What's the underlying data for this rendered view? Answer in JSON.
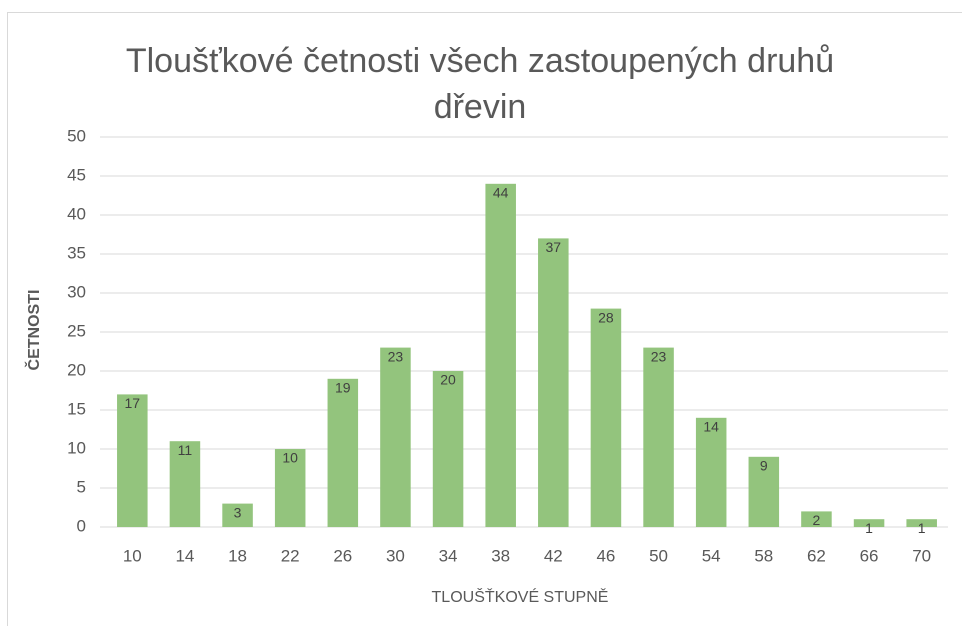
{
  "chart_data": {
    "type": "bar",
    "title": "Tloušťkové četnosti všech zastoupených druhů dřevin",
    "x_label": "TLOUŠŤKOVÉ STUPNĚ",
    "y_label": "ČETNOSTI",
    "categories": [
      "10",
      "14",
      "18",
      "22",
      "26",
      "30",
      "34",
      "38",
      "42",
      "46",
      "50",
      "54",
      "58",
      "62",
      "66",
      "70"
    ],
    "values": [
      17,
      11,
      3,
      10,
      19,
      23,
      20,
      44,
      37,
      28,
      23,
      14,
      9,
      2,
      1,
      1
    ],
    "color": "#93c47d",
    "ylim": [
      0,
      50
    ],
    "yticks": [
      0,
      5,
      10,
      15,
      20,
      25,
      30,
      35,
      40,
      45,
      50
    ],
    "grid": true
  }
}
